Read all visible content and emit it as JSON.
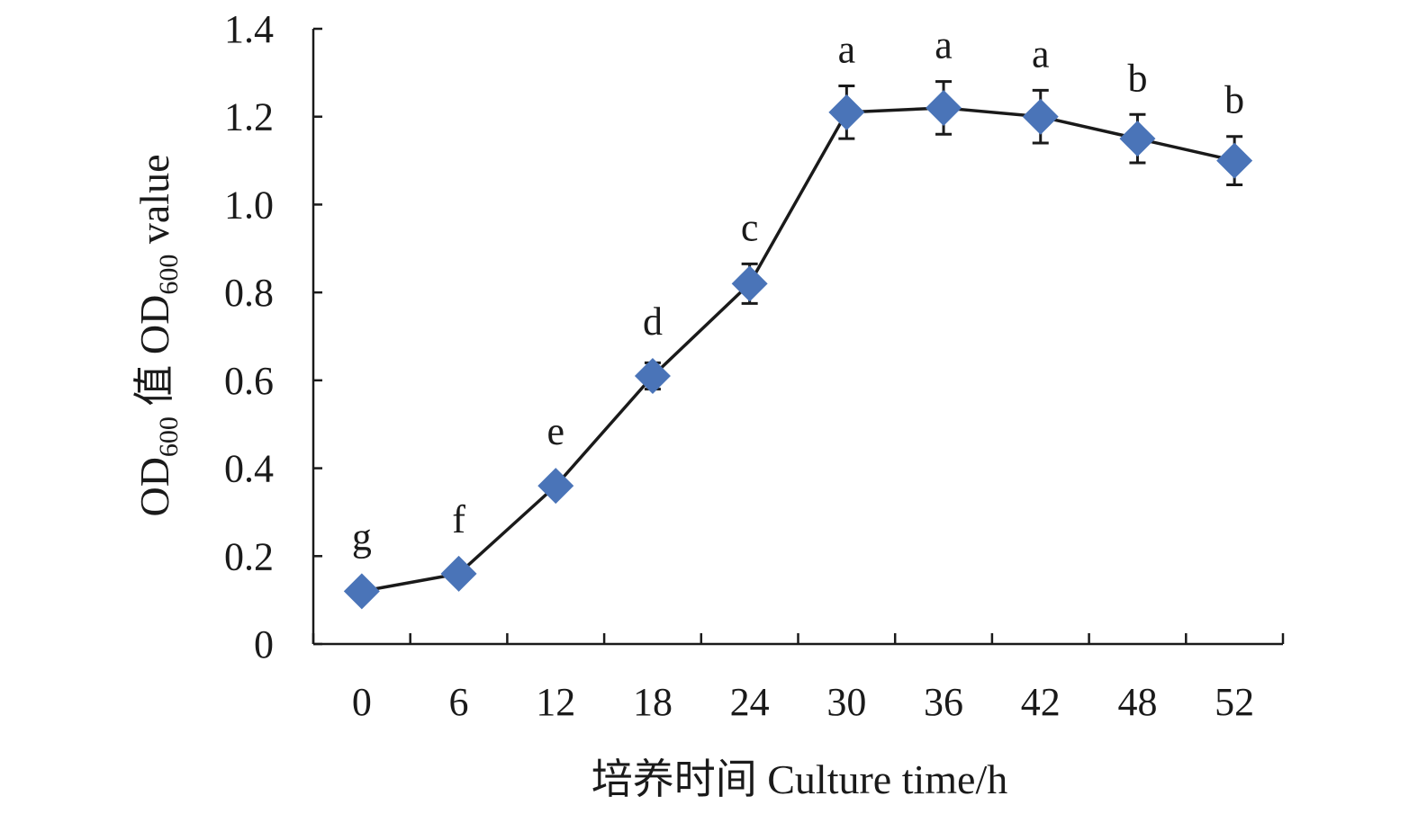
{
  "chart_data": {
    "type": "line",
    "title": "",
    "x": [
      "0",
      "6",
      "12",
      "18",
      "24",
      "30",
      "36",
      "42",
      "48",
      "52"
    ],
    "values": [
      0.12,
      0.16,
      0.36,
      0.61,
      0.82,
      1.21,
      1.22,
      1.2,
      1.15,
      1.1
    ],
    "error": [
      0.01,
      0.01,
      0.01,
      0.03,
      0.045,
      0.06,
      0.06,
      0.06,
      0.055,
      0.055
    ],
    "significance": [
      "g",
      "f",
      "e",
      "d",
      "c",
      "a",
      "a",
      "a",
      "b",
      "b"
    ],
    "xlabel": "培养时间 Culture time/h",
    "ylabel": {
      "prefix": "OD",
      "sub1": "600",
      "mid": " 值 OD",
      "sub2": "600",
      "suffix": " value"
    },
    "ylim": [
      0,
      1.4
    ],
    "yticks": [
      "0",
      "0.2",
      "0.4",
      "0.6",
      "0.8",
      "1.0",
      "1.2",
      "1.4"
    ],
    "grid": false,
    "legend": "none",
    "colors": {
      "marker": "#4a74b8",
      "line": "#1a1a1a",
      "axis": "#1a1a1a"
    }
  }
}
